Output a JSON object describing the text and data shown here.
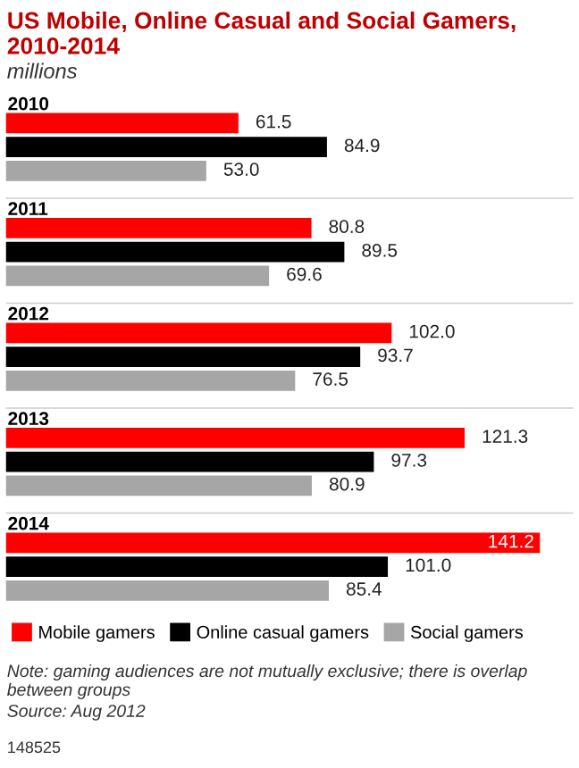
{
  "chart_data": {
    "type": "bar",
    "orientation": "horizontal",
    "title": "US Mobile, Online Casual and Social Gamers, 2010-2014",
    "subtitle": "millions",
    "categories": [
      "2010",
      "2011",
      "2012",
      "2013",
      "2014"
    ],
    "series": [
      {
        "name": "Mobile gamers",
        "color": "#ff0000",
        "values": [
          61.5,
          80.8,
          102.0,
          121.3,
          141.2
        ],
        "value_labels": [
          "61.5",
          "80.8",
          "102.0",
          "121.3",
          "141.2"
        ]
      },
      {
        "name": "Online casual gamers",
        "color": "#000000",
        "values": [
          84.9,
          89.5,
          93.7,
          97.3,
          101.0
        ],
        "value_labels": [
          "84.9",
          "89.5",
          "93.7",
          "97.3",
          "101.0"
        ]
      },
      {
        "name": "Social gamers",
        "color": "#a6a6a6",
        "values": [
          53.0,
          69.6,
          76.5,
          80.9,
          85.4
        ],
        "value_labels": [
          "53.0",
          "69.6",
          "76.5",
          "80.9",
          "85.4"
        ]
      }
    ],
    "xlim": [
      0,
      150
    ],
    "tick_labels": "y",
    "legend": "bottom",
    "annotations": [
      "Note: gaming audiences are not mutually exclusive; there is overlap between groups",
      "Source: Aug 2012",
      "148525"
    ]
  }
}
